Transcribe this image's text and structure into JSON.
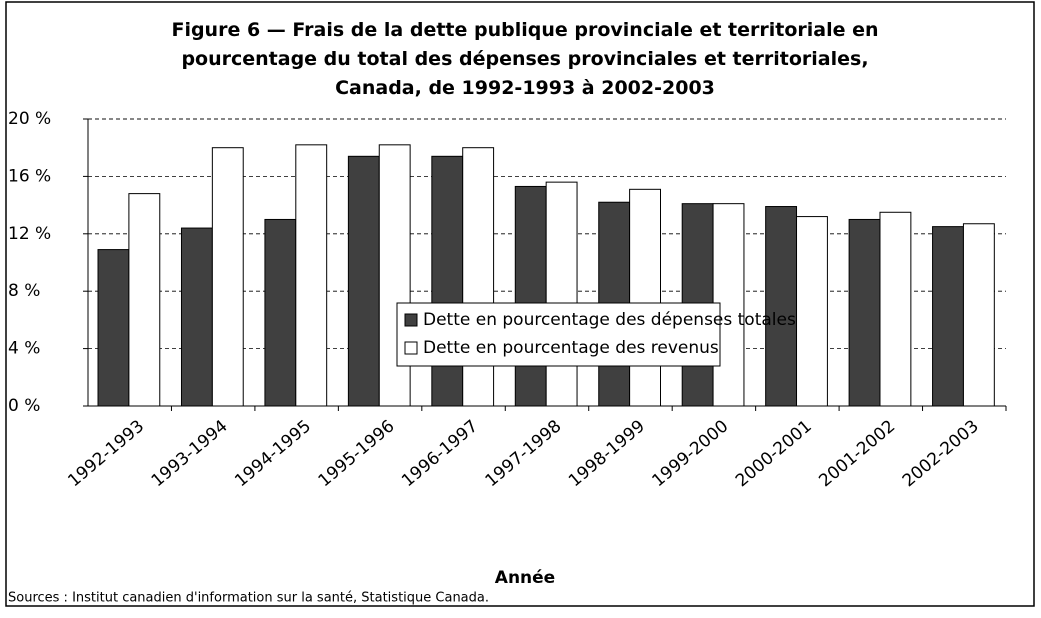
{
  "chart_data": {
    "type": "bar",
    "title": "Figure 6 — Frais de la dette publique provinciale et territoriale en pourcentage du total des dépenses provinciales et territoriales, Canada, de 1992-1993 à 2002-2003",
    "x_label": "Année",
    "source": "Sources : Institut canadien d'information sur la santé, Statistique Canada.",
    "categories": [
      "1992-1993",
      "1993-1994",
      "1994-1995",
      "1995-1996",
      "1996-1997",
      "1997-1998",
      "1998-1999",
      "1999-2000",
      "2000-2001",
      "2001-2002",
      "2002-2003"
    ],
    "series": [
      {
        "name": "Dette en pourcentage des dépenses totales",
        "color": "#404040",
        "values": [
          10.9,
          12.4,
          13.0,
          17.4,
          17.4,
          15.3,
          14.2,
          14.1,
          13.9,
          13.0,
          12.5
        ]
      },
      {
        "name": "Dette en pourcentage des revenus",
        "color": "#ffffff",
        "values": [
          14.8,
          18.0,
          18.2,
          18.2,
          18.0,
          15.6,
          15.1,
          14.1,
          13.2,
          13.5,
          12.7
        ]
      }
    ],
    "ylim": [
      0,
      20
    ],
    "yticks": [
      {
        "value": 0,
        "label": "0 %"
      },
      {
        "value": 4,
        "label": "4 %"
      },
      {
        "value": 8,
        "label": "8 %"
      },
      {
        "value": 12,
        "label": "12 %"
      },
      {
        "value": 16,
        "label": "16 %"
      },
      {
        "value": 20,
        "label": "20 %"
      }
    ],
    "grid": true,
    "legend": "center"
  }
}
